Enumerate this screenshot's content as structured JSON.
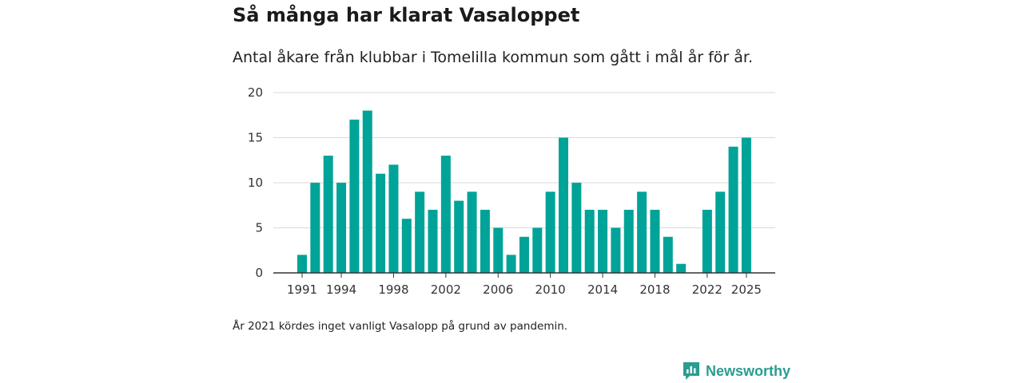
{
  "header": {
    "title": "Så många har klarat Vasaloppet",
    "subtitle": "Antal åkare från klubbar i Tomelilla kommun som gått i mål år för år."
  },
  "footer": {
    "note": "År 2021 kördes inget vanligt Vasalopp på grund av pandemin.",
    "brand": "Newsworthy"
  },
  "colors": {
    "bar": "#00a398",
    "grid": "#d9d9d9",
    "axis": "#333333",
    "brand": "#2a9d8f"
  },
  "chart_data": {
    "type": "bar",
    "title": "Så många har klarat Vasaloppet",
    "xlabel": "",
    "ylabel": "",
    "ylim": [
      0,
      20
    ],
    "yticks": [
      0,
      5,
      10,
      15,
      20
    ],
    "xticks": [
      1991,
      1994,
      1998,
      2002,
      2006,
      2010,
      2014,
      2018,
      2022,
      2025
    ],
    "categories": [
      1991,
      1992,
      1993,
      1994,
      1995,
      1996,
      1997,
      1998,
      1999,
      2000,
      2001,
      2002,
      2003,
      2004,
      2005,
      2006,
      2007,
      2008,
      2009,
      2010,
      2011,
      2012,
      2013,
      2014,
      2015,
      2016,
      2017,
      2018,
      2019,
      2020,
      2021,
      2022,
      2023,
      2024,
      2025
    ],
    "values": [
      2,
      10,
      13,
      10,
      17,
      18,
      11,
      12,
      6,
      9,
      7,
      13,
      8,
      9,
      7,
      5,
      2,
      4,
      5,
      9,
      15,
      10,
      7,
      7,
      5,
      7,
      9,
      7,
      4,
      1,
      0,
      7,
      9,
      14,
      15
    ],
    "grid": true
  }
}
